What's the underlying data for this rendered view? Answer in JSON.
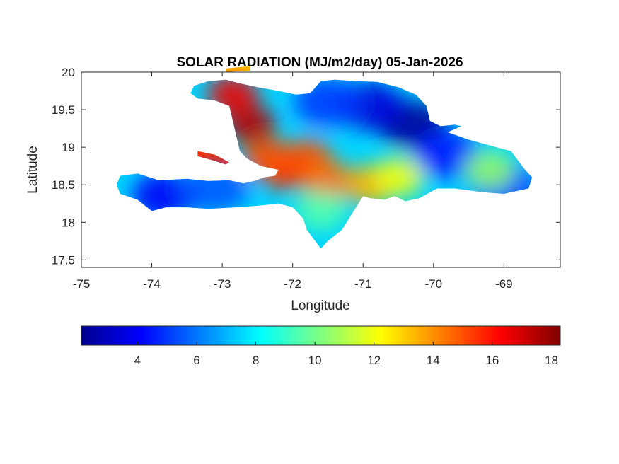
{
  "chart_data": {
    "type": "heatmap",
    "title": "SOLAR RADIATION (MJ/m2/day) 05-Jan-2026",
    "xlabel": "Longitude",
    "ylabel": "Latitude",
    "xlim": [
      -75,
      -68.2
    ],
    "ylim": [
      17.4,
      20
    ],
    "xticks": [
      -75,
      -74,
      -73,
      -72,
      -71,
      -70,
      -69
    ],
    "xtick_labels": [
      "-75",
      "-74",
      "-73",
      "-72",
      "-71",
      "-70",
      "-69"
    ],
    "yticks": [
      17.5,
      18,
      18.5,
      19,
      19.5,
      20
    ],
    "ytick_labels": [
      "17.5",
      "18",
      "18.5",
      "19",
      "19.5",
      "20"
    ],
    "colormap": "jet",
    "clim": [
      2.1,
      18.3
    ],
    "colorbar": {
      "location": "bottom",
      "ticks": [
        4,
        6,
        8,
        10,
        12,
        14,
        16,
        18
      ],
      "tick_labels": [
        "4",
        "6",
        "8",
        "10",
        "12",
        "14",
        "16",
        "18"
      ]
    },
    "region": "Hispaniola (Haiti and Dominican Republic)",
    "value_range_observed": [
      2.5,
      18
    ],
    "outline_main": [
      [
        -74.45,
        18.62
      ],
      [
        -74.2,
        18.65
      ],
      [
        -73.9,
        18.56
      ],
      [
        -73.5,
        18.58
      ],
      [
        -73.2,
        18.55
      ],
      [
        -72.9,
        18.56
      ],
      [
        -72.7,
        18.52
      ],
      [
        -72.55,
        18.55
      ],
      [
        -72.4,
        18.6
      ],
      [
        -72.25,
        18.62
      ],
      [
        -72.2,
        18.7
      ],
      [
        -72.45,
        18.75
      ],
      [
        -72.65,
        18.85
      ],
      [
        -72.75,
        18.95
      ],
      [
        -72.8,
        19.15
      ],
      [
        -72.85,
        19.35
      ],
      [
        -72.9,
        19.55
      ],
      [
        -73.1,
        19.62
      ],
      [
        -73.35,
        19.65
      ],
      [
        -73.45,
        19.72
      ],
      [
        -73.4,
        19.82
      ],
      [
        -73.2,
        19.88
      ],
      [
        -72.95,
        19.9
      ],
      [
        -72.75,
        19.85
      ],
      [
        -72.5,
        19.8
      ],
      [
        -72.2,
        19.75
      ],
      [
        -71.95,
        19.7
      ],
      [
        -71.75,
        19.72
      ],
      [
        -71.6,
        19.88
      ],
      [
        -71.4,
        19.9
      ],
      [
        -71.1,
        19.88
      ],
      [
        -70.8,
        19.87
      ],
      [
        -70.5,
        19.8
      ],
      [
        -70.25,
        19.7
      ],
      [
        -70.1,
        19.55
      ],
      [
        -70.05,
        19.35
      ],
      [
        -69.9,
        19.28
      ],
      [
        -69.7,
        19.3
      ],
      [
        -69.6,
        19.28
      ],
      [
        -69.8,
        19.2
      ],
      [
        -69.5,
        19.1
      ],
      [
        -69.1,
        19.0
      ],
      [
        -68.9,
        18.95
      ],
      [
        -68.7,
        18.7
      ],
      [
        -68.6,
        18.6
      ],
      [
        -68.65,
        18.45
      ],
      [
        -68.9,
        18.4
      ],
      [
        -69.0,
        18.38
      ],
      [
        -69.3,
        18.4
      ],
      [
        -69.7,
        18.45
      ],
      [
        -69.95,
        18.45
      ],
      [
        -70.2,
        18.32
      ],
      [
        -70.4,
        18.28
      ],
      [
        -70.55,
        18.35
      ],
      [
        -70.7,
        18.3
      ],
      [
        -70.9,
        18.32
      ],
      [
        -71.0,
        18.35
      ],
      [
        -71.1,
        18.2
      ],
      [
        -71.2,
        18.05
      ],
      [
        -71.3,
        17.9
      ],
      [
        -71.5,
        17.75
      ],
      [
        -71.6,
        17.65
      ],
      [
        -71.8,
        17.9
      ],
      [
        -71.85,
        18.05
      ],
      [
        -72.0,
        18.2
      ],
      [
        -72.2,
        18.25
      ],
      [
        -72.5,
        18.22
      ],
      [
        -72.8,
        18.2
      ],
      [
        -73.2,
        18.18
      ],
      [
        -73.5,
        18.2
      ],
      [
        -73.8,
        18.2
      ],
      [
        -74.0,
        18.15
      ],
      [
        -74.2,
        18.3
      ],
      [
        -74.45,
        18.38
      ],
      [
        -74.5,
        18.5
      ]
    ],
    "outline_gonave": [
      [
        -73.35,
        18.95
      ],
      [
        -73.1,
        18.9
      ],
      [
        -72.9,
        18.8
      ],
      [
        -72.95,
        18.77
      ],
      [
        -73.15,
        18.83
      ],
      [
        -73.35,
        18.88
      ]
    ],
    "outline_tortuga": [
      [
        -72.95,
        20.05
      ],
      [
        -72.6,
        20.08
      ],
      [
        -72.6,
        20.02
      ],
      [
        -72.95,
        20.0
      ]
    ],
    "hotspots": [
      {
        "lon": -72.6,
        "lat": 19.3,
        "value": 17.5
      },
      {
        "lon": -72.85,
        "lat": 19.7,
        "value": 16.5
      },
      {
        "lon": -72.1,
        "lat": 18.7,
        "value": 16.0
      },
      {
        "lon": -71.8,
        "lat": 18.85,
        "value": 15.0
      },
      {
        "lon": -71.5,
        "lat": 18.55,
        "value": 14.5
      },
      {
        "lon": -70.9,
        "lat": 18.5,
        "value": 13.5
      },
      {
        "lon": -72.35,
        "lat": 18.85,
        "value": 15.0
      },
      {
        "lon": -70.5,
        "lat": 18.6,
        "value": 12.0
      },
      {
        "lon": -69.2,
        "lat": 18.7,
        "value": 10.5
      },
      {
        "lon": -71.6,
        "lat": 18.15,
        "value": 9.5
      }
    ],
    "coldspots": [
      {
        "lon": -70.3,
        "lat": 19.3,
        "value": 2.5
      },
      {
        "lon": -70.9,
        "lat": 19.55,
        "value": 3.5
      },
      {
        "lon": -73.8,
        "lat": 18.35,
        "value": 4.0
      },
      {
        "lon": -69.8,
        "lat": 18.9,
        "value": 4.5
      },
      {
        "lon": -71.5,
        "lat": 19.6,
        "value": 5.0
      },
      {
        "lon": -73.1,
        "lat": 18.45,
        "value": 5.5
      },
      {
        "lon": -69.0,
        "lat": 18.5,
        "value": 5.0
      }
    ]
  }
}
